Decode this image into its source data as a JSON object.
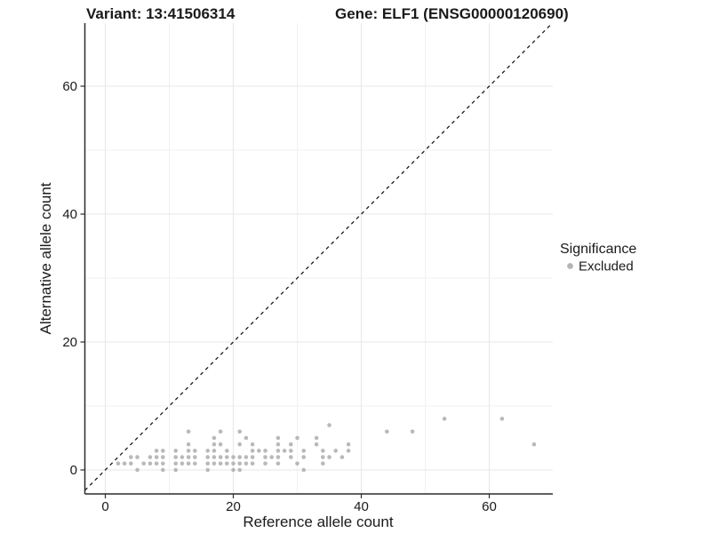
{
  "title": {
    "variant": "Variant: 13:41506314",
    "gene": "Gene: ELF1 (ENSG00000120690)"
  },
  "axes": {
    "x": {
      "label": "Reference allele count",
      "ticks": [
        "0",
        "20",
        "40",
        "60"
      ],
      "tick_values": [
        0,
        20,
        40,
        60
      ],
      "minor_values": [
        10,
        30,
        50
      ],
      "range": [
        -3.2,
        70.7
      ]
    },
    "y": {
      "label": "Alternative allele count",
      "ticks": [
        "0",
        "20",
        "40",
        "60"
      ],
      "tick_values": [
        0,
        20,
        40,
        60
      ],
      "minor_values": [
        10,
        30,
        50
      ],
      "range": [
        -3.75,
        69.9
      ]
    }
  },
  "legend": {
    "title": "Significance",
    "items": [
      {
        "label": "Excluded",
        "color": "#b5b5b5"
      }
    ]
  },
  "colors": {
    "point": "#b9b9b9",
    "identity_line": "#1a1a1a",
    "grid_major": "#e7e7e7",
    "grid_minor": "#f2f2f2",
    "axis_line": "#2b2b2b"
  },
  "chart_data": {
    "type": "scatter",
    "title": "Variant: 13:41506314 — Gene: ELF1 (ENSG00000120690)",
    "xlabel": "Reference allele count",
    "ylabel": "Alternative allele count",
    "xlim": [
      -3.2,
      70.7
    ],
    "ylim": [
      -3.75,
      69.9
    ],
    "grid": "on",
    "legend_position": "right-middle",
    "identity_line": {
      "equation": "y = x",
      "style": "dashed",
      "color": "#1a1a1a"
    },
    "series": [
      {
        "name": "Excluded",
        "color": "#b9b9b9",
        "points": [
          [
            5,
            0
          ],
          [
            9,
            0
          ],
          [
            11,
            0
          ],
          [
            16,
            0
          ],
          [
            20,
            0
          ],
          [
            21,
            0
          ],
          [
            31,
            0
          ],
          [
            2,
            1
          ],
          [
            3,
            1
          ],
          [
            4,
            1
          ],
          [
            6,
            1
          ],
          [
            7,
            1
          ],
          [
            8,
            1
          ],
          [
            9,
            1
          ],
          [
            11,
            1
          ],
          [
            12,
            1
          ],
          [
            13,
            1
          ],
          [
            14,
            1
          ],
          [
            16,
            1
          ],
          [
            17,
            1
          ],
          [
            18,
            1
          ],
          [
            19,
            1
          ],
          [
            20,
            1
          ],
          [
            21,
            1
          ],
          [
            22,
            1
          ],
          [
            23,
            1
          ],
          [
            25,
            1
          ],
          [
            27,
            1
          ],
          [
            30,
            1
          ],
          [
            34,
            1
          ],
          [
            4,
            2
          ],
          [
            5,
            2
          ],
          [
            7,
            2
          ],
          [
            8,
            2
          ],
          [
            9,
            2
          ],
          [
            11,
            2
          ],
          [
            12,
            2
          ],
          [
            13,
            2
          ],
          [
            14,
            2
          ],
          [
            16,
            2
          ],
          [
            17,
            2
          ],
          [
            18,
            2
          ],
          [
            19,
            2
          ],
          [
            20,
            2
          ],
          [
            21,
            2
          ],
          [
            22,
            2
          ],
          [
            23,
            2
          ],
          [
            25,
            2
          ],
          [
            26,
            2
          ],
          [
            27,
            2
          ],
          [
            29,
            2
          ],
          [
            31,
            2
          ],
          [
            34,
            2
          ],
          [
            35,
            2
          ],
          [
            37,
            2
          ],
          [
            8,
            3
          ],
          [
            9,
            3
          ],
          [
            11,
            3
          ],
          [
            13,
            3
          ],
          [
            14,
            3
          ],
          [
            16,
            3
          ],
          [
            17,
            3
          ],
          [
            19,
            3
          ],
          [
            23,
            3
          ],
          [
            24,
            3
          ],
          [
            25,
            3
          ],
          [
            27,
            3
          ],
          [
            28,
            3
          ],
          [
            29,
            3
          ],
          [
            31,
            3
          ],
          [
            34,
            3
          ],
          [
            36,
            3
          ],
          [
            38,
            3
          ],
          [
            13,
            4
          ],
          [
            17,
            4
          ],
          [
            18,
            4
          ],
          [
            21,
            4
          ],
          [
            23,
            4
          ],
          [
            27,
            4
          ],
          [
            29,
            4
          ],
          [
            33,
            4
          ],
          [
            38,
            4
          ],
          [
            67,
            4
          ],
          [
            17,
            5
          ],
          [
            22,
            5
          ],
          [
            27,
            5
          ],
          [
            30,
            5
          ],
          [
            33,
            5
          ],
          [
            13,
            6
          ],
          [
            18,
            6
          ],
          [
            21,
            6
          ],
          [
            44,
            6
          ],
          [
            48,
            6
          ],
          [
            35,
            7
          ],
          [
            53,
            8
          ],
          [
            62,
            8
          ]
        ]
      }
    ]
  }
}
